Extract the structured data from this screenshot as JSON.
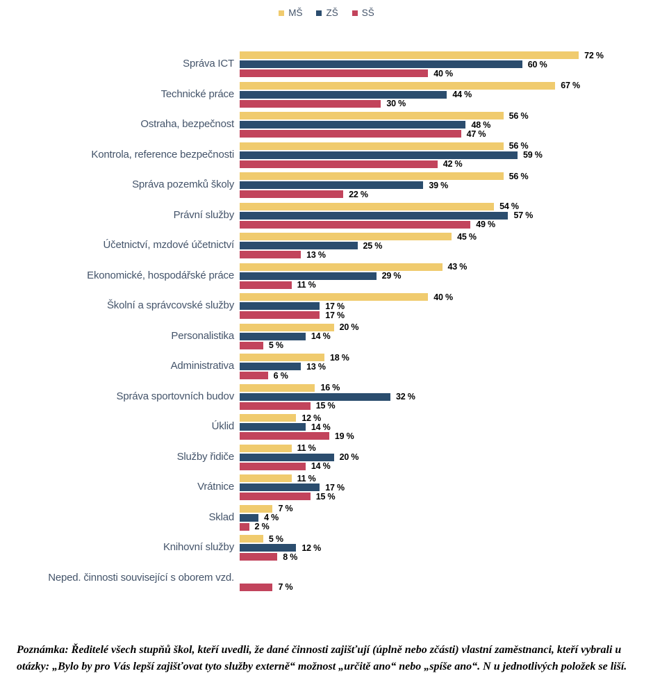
{
  "legend": {
    "items": [
      {
        "label": "MŠ",
        "color": "#F0CB6E"
      },
      {
        "label": "ZŠ",
        "color": "#2B4D6E"
      },
      {
        "label": "SŠ",
        "color": "#C2445C"
      }
    ]
  },
  "footnote": "Poznámka: Ředitelé všech stupňů škol, kteří uvedli, že dané činnosti zajišťují (úplně nebo zčásti) vlastní zaměstnanci, kteří vybrali u otázky: „Bylo by pro Vás lepší zajišťovat tyto služby externě“ možnost „určitě ano“ nebo „spíše ano“. N u jednotlivých položek se liší.",
  "chart_data": {
    "type": "bar",
    "orientation": "horizontal",
    "value_unit": "%",
    "value_label_suffix": " %",
    "xlim": [
      0,
      100
    ],
    "grid": false,
    "legend_position": "top-center",
    "categories": [
      "Správa ICT",
      "Technické práce",
      "Ostraha, bezpečnost",
      "Kontrola, reference bezpečnosti",
      "Správa pozemků školy",
      "Právní služby",
      "Účetnictví, mzdové účetnictví",
      "Ekonomické, hospodářské práce",
      "Školní a správcovské služby",
      "Personalistika",
      "Administrativa",
      "Správa sportovních budov",
      "Úklid",
      "Služby řidiče",
      "Vrátnice",
      "Sklad",
      "Knihovní služby",
      "Neped. činnosti související s oborem vzd."
    ],
    "series": [
      {
        "name": "MŠ",
        "color": "#F0CB6E",
        "values": [
          72,
          67,
          56,
          56,
          56,
          54,
          45,
          43,
          40,
          20,
          18,
          16,
          12,
          11,
          11,
          7,
          5,
          null
        ]
      },
      {
        "name": "ZŠ",
        "color": "#2B4D6E",
        "values": [
          60,
          44,
          48,
          59,
          39,
          57,
          25,
          29,
          17,
          14,
          13,
          32,
          14,
          20,
          17,
          4,
          12,
          null
        ]
      },
      {
        "name": "SŠ",
        "color": "#C2445C",
        "values": [
          40,
          30,
          47,
          42,
          22,
          49,
          13,
          11,
          17,
          5,
          6,
          15,
          19,
          14,
          15,
          2,
          8,
          7
        ]
      }
    ]
  }
}
